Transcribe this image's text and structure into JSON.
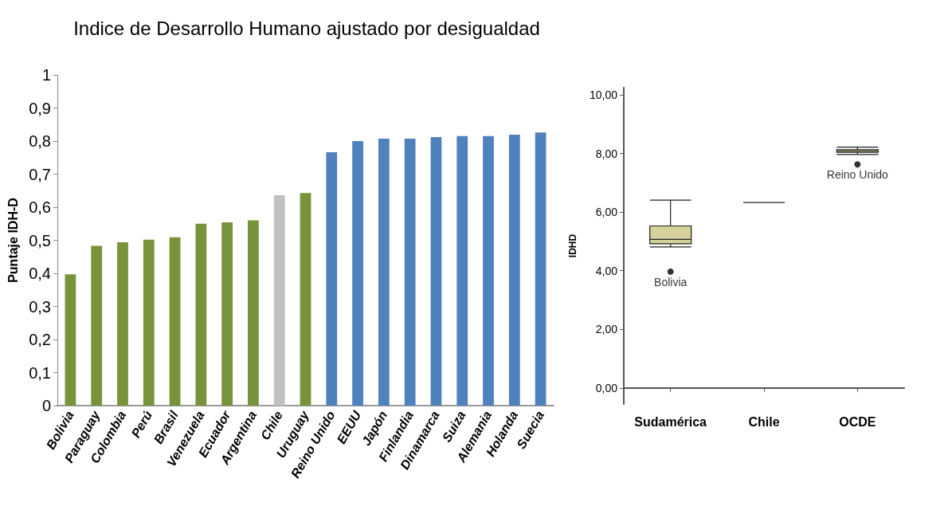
{
  "chart_data": [
    {
      "type": "bar",
      "title": "Indice de Desarrollo Humano ajustado por desigualdad",
      "ylabel": "Puntaje IDH-D",
      "categories": [
        "Bolivia",
        "Paraguay",
        "Colombia",
        "Perú",
        "Brasil",
        "Venezuela",
        "Ecuador",
        "Argentina",
        "Chile",
        "Uruguay",
        "Reino Unido",
        "EEUU",
        "Japón",
        "Finlandia",
        "Dinamarca",
        "Suiza",
        "Alemania",
        "Holanda",
        "Suecia"
      ],
      "values": [
        0.397,
        0.483,
        0.494,
        0.502,
        0.509,
        0.55,
        0.554,
        0.56,
        0.636,
        0.643,
        0.766,
        0.8,
        0.807,
        0.807,
        0.812,
        0.815,
        0.815,
        0.819,
        0.826
      ],
      "colors": [
        "#77933c",
        "#77933c",
        "#77933c",
        "#77933c",
        "#77933c",
        "#77933c",
        "#77933c",
        "#77933c",
        "#c0c0c0",
        "#77933c",
        "#4f81bd",
        "#4f81bd",
        "#4f81bd",
        "#4f81bd",
        "#4f81bd",
        "#4f81bd",
        "#4f81bd",
        "#4f81bd",
        "#4f81bd"
      ],
      "ylim": [
        0,
        1
      ],
      "yticks": [
        0,
        {
          "value": 0.1,
          "label": "0,1"
        },
        {
          "value": 0.2,
          "label": "0,2"
        },
        {
          "value": 0.3,
          "label": "0,3"
        },
        {
          "value": 0.4,
          "label": "0,4"
        },
        {
          "value": 0.5,
          "label": "0,5"
        },
        {
          "value": 0.6,
          "label": "0,6"
        },
        {
          "value": 0.7,
          "label": "0,7"
        },
        {
          "value": 0.8,
          "label": "0,8"
        },
        {
          "value": 0.9,
          "label": "0,9"
        },
        1
      ],
      "grid": false
    },
    {
      "type": "box",
      "ylabel": "IDHD",
      "categories": [
        "Sudamérica",
        "Chile",
        "OCDE"
      ],
      "colors": [
        "#d6d09a",
        "#222222",
        "#d6d09a"
      ],
      "boxes": [
        {
          "low": 4.81,
          "q1": 4.92,
          "median": 5.07,
          "q3": 5.53,
          "high": 6.41,
          "outliers": [
            3.97
          ]
        },
        {
          "low": 6.33,
          "q1": 6.33,
          "median": 6.33,
          "q3": 6.33,
          "high": 6.33
        },
        {
          "low": 7.97,
          "q1": 8.04,
          "median": 8.08,
          "q3": 8.13,
          "high": 8.22,
          "outliers": [
            7.63
          ]
        }
      ],
      "ylim": [
        -0.55,
        10.25
      ],
      "yticks": [
        {
          "value": 0,
          "label": "0,00"
        },
        {
          "value": 2,
          "label": "2,00"
        },
        {
          "value": 4,
          "label": "4,00"
        },
        {
          "value": 6,
          "label": "6,00"
        },
        {
          "value": 8,
          "label": "8,00"
        },
        {
          "value": 10,
          "label": "10,00"
        }
      ],
      "annotations": [
        "Bolivia",
        "Reino Unido"
      ],
      "grid": false
    }
  ]
}
